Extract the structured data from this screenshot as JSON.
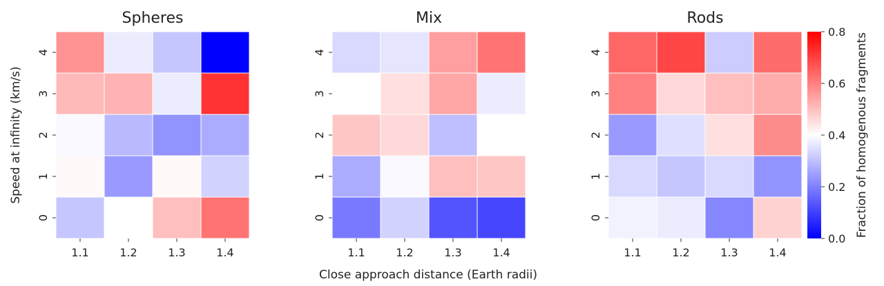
{
  "chart_data": {
    "type": "heatmap",
    "panels": [
      {
        "title": "Spheres",
        "x": [
          "1.1",
          "1.2",
          "1.3",
          "1.4"
        ],
        "y": [
          "4",
          "3",
          "2",
          "1",
          "0"
        ],
        "values": [
          [
            0.57,
            0.37,
            0.31,
            0.0
          ],
          [
            0.51,
            0.52,
            0.37,
            0.72
          ],
          [
            0.39,
            0.29,
            0.23,
            0.27
          ],
          [
            0.41,
            0.24,
            0.41,
            0.33
          ],
          [
            0.31,
            0.4,
            0.5,
            0.62
          ]
        ]
      },
      {
        "title": "Mix",
        "x": [
          "1.1",
          "1.2",
          "1.3",
          "1.4"
        ],
        "y": [
          "4",
          "3",
          "2",
          "1",
          "0"
        ],
        "values": [
          [
            0.34,
            0.36,
            0.55,
            0.62
          ],
          [
            0.4,
            0.45,
            0.54,
            0.37
          ],
          [
            0.49,
            0.46,
            0.3,
            0.4
          ],
          [
            0.27,
            0.39,
            0.5,
            0.49
          ],
          [
            0.19,
            0.33,
            0.13,
            0.11
          ]
        ]
      },
      {
        "title": "Rods",
        "x": [
          "1.1",
          "1.2",
          "1.3",
          "1.4"
        ],
        "y": [
          "4",
          "3",
          "2",
          "1",
          "0"
        ],
        "values": [
          [
            0.64,
            0.69,
            0.32,
            0.63
          ],
          [
            0.6,
            0.46,
            0.5,
            0.53
          ],
          [
            0.24,
            0.35,
            0.45,
            0.58
          ],
          [
            0.34,
            0.31,
            0.34,
            0.23
          ],
          [
            0.38,
            0.37,
            0.21,
            0.47
          ]
        ]
      }
    ],
    "xlabel": "Close approach distance (Earth radii)",
    "ylabel": "Speed at infinity (km/s)",
    "colorbar": {
      "label": "Fraction of homogenous fragments",
      "range": [
        0.0,
        0.8
      ],
      "ticks": [
        "0.0",
        "0.2",
        "0.4",
        "0.6",
        "0.8"
      ],
      "colormap": "bwr",
      "low_color": "#0000ff",
      "mid_color": "#ffffff",
      "high_color": "#ff0000"
    },
    "grid": false
  }
}
